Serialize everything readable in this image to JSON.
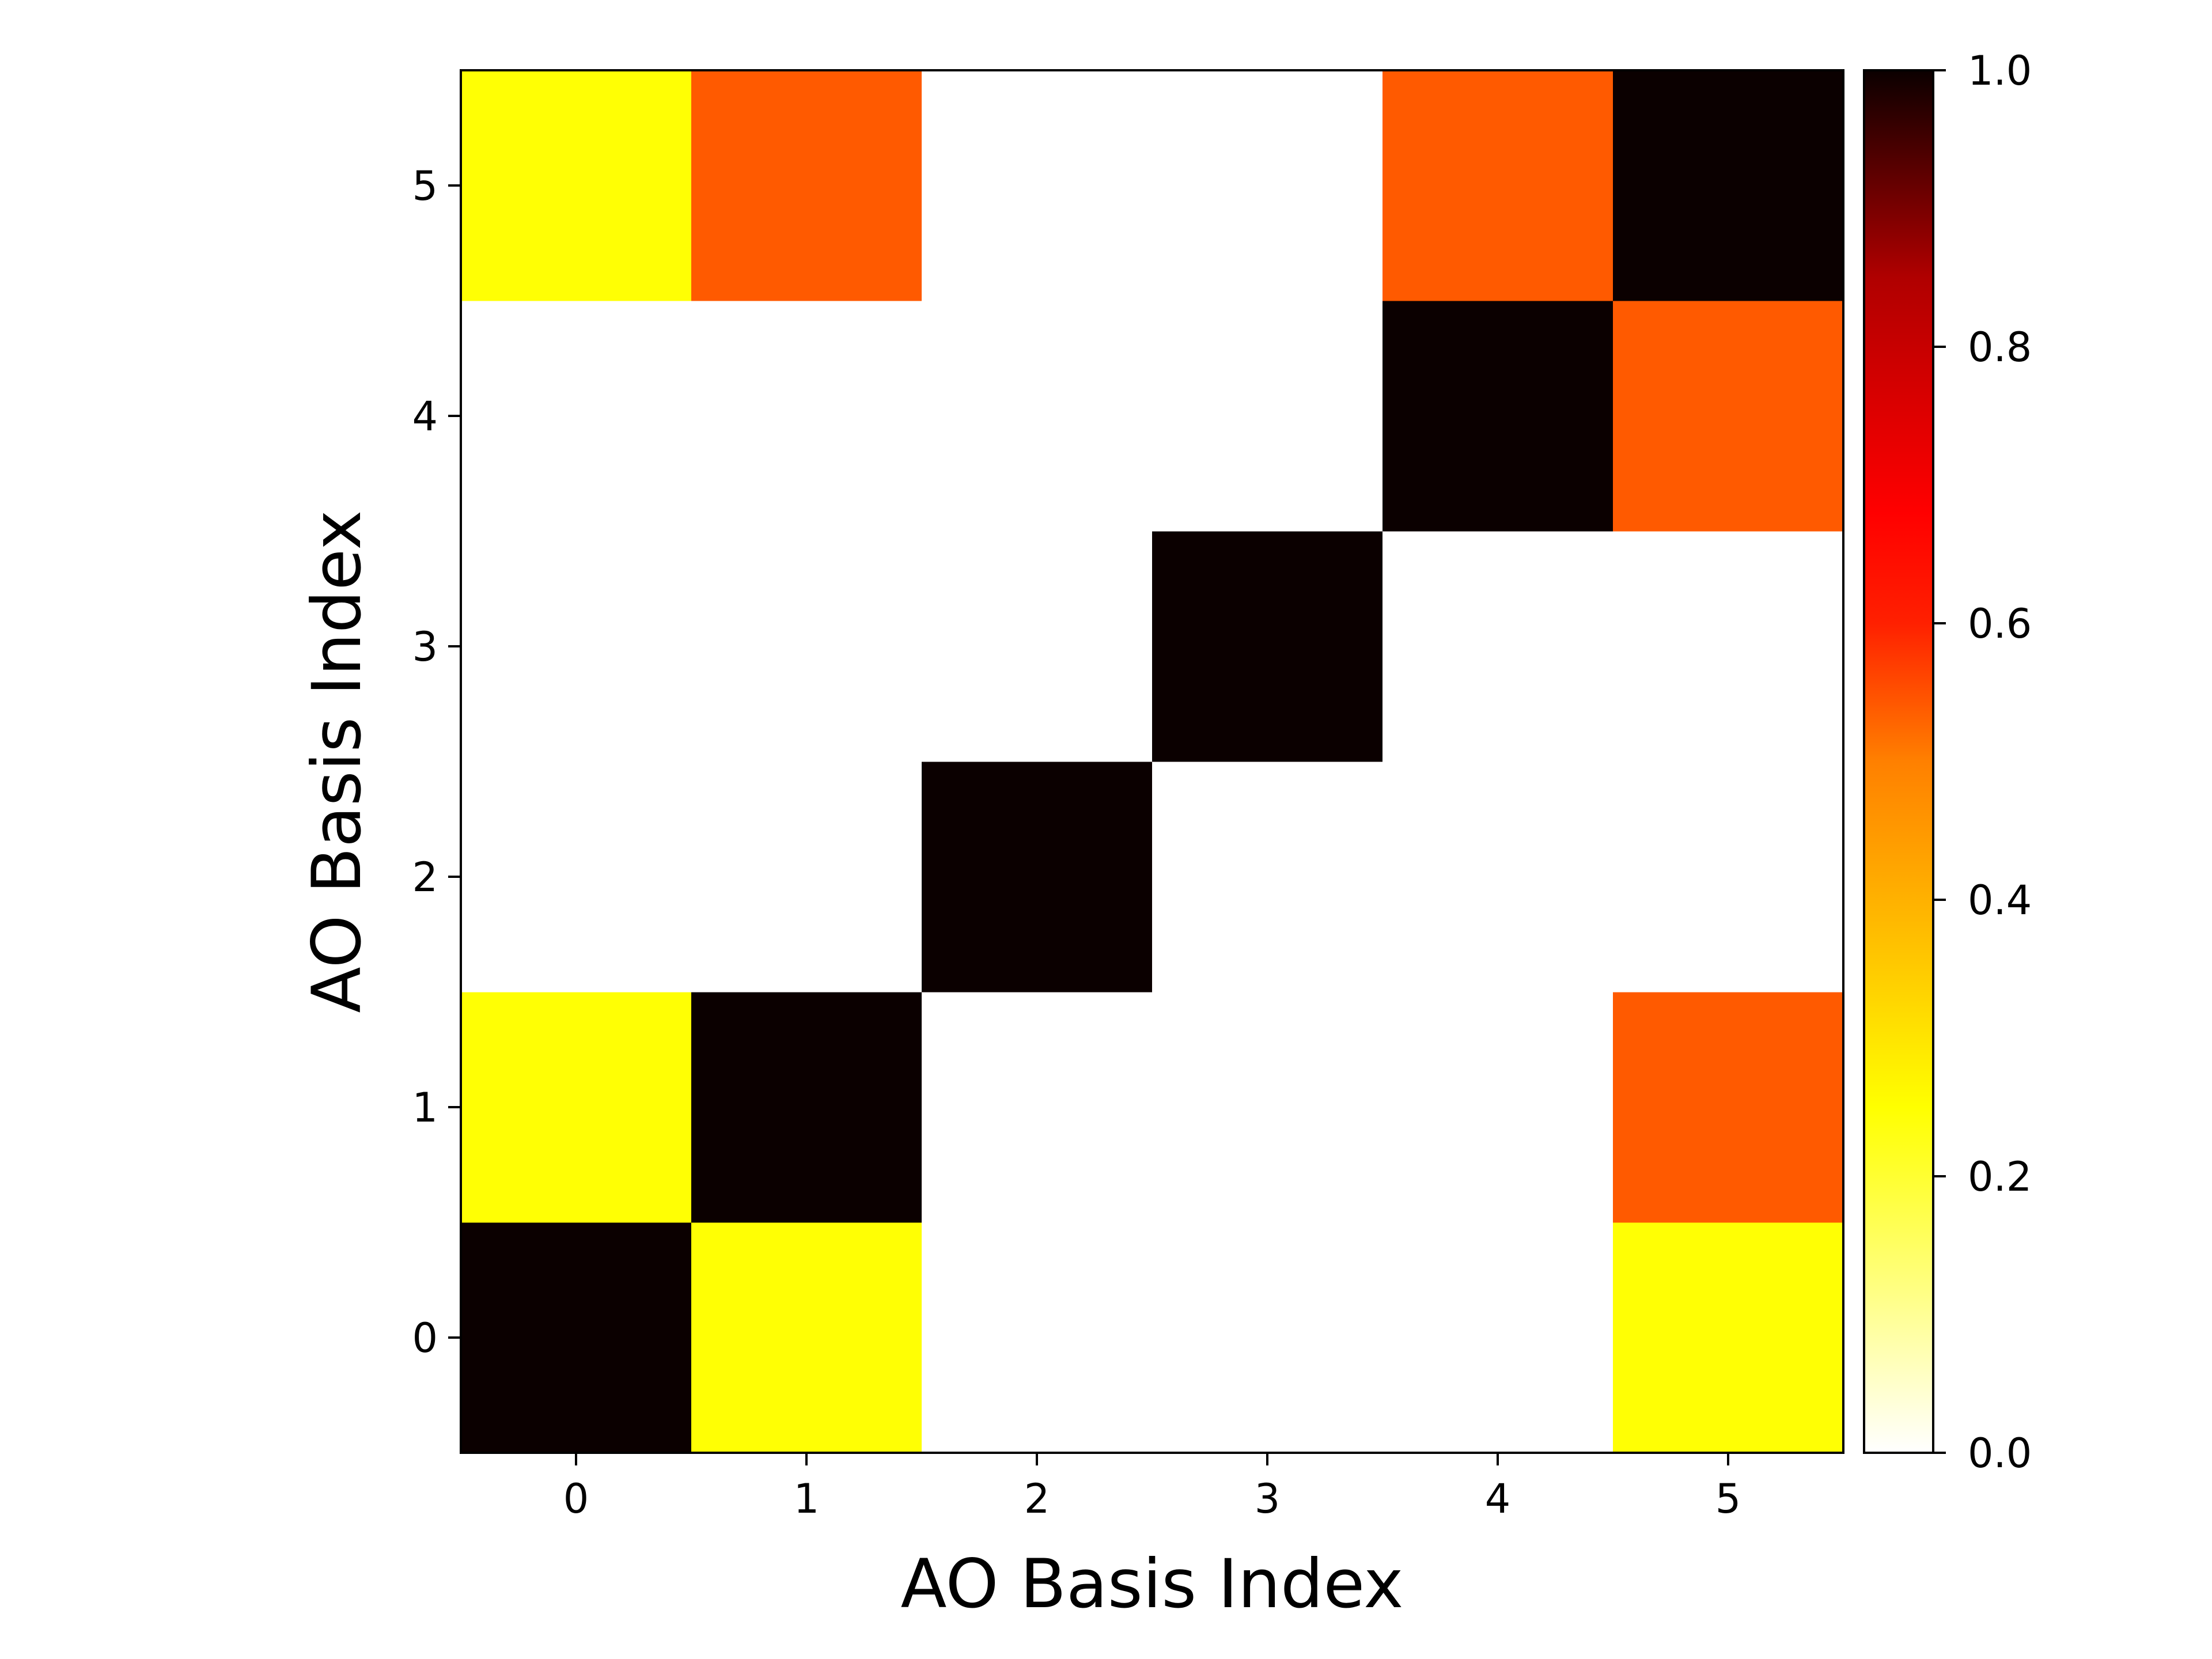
{
  "chart_data": {
    "type": "heatmap",
    "title": "",
    "xlabel": "AO Basis Index",
    "ylabel": "AO Basis Index",
    "x_categories": [
      "0",
      "1",
      "2",
      "3",
      "4",
      "5"
    ],
    "y_categories": [
      "0",
      "1",
      "2",
      "3",
      "4",
      "5"
    ],
    "values": [
      [
        1.0,
        0.25,
        0.0,
        0.0,
        0.0,
        0.25
      ],
      [
        0.25,
        1.0,
        0.0,
        0.0,
        0.0,
        0.5
      ],
      [
        0.0,
        0.0,
        1.0,
        0.0,
        0.0,
        0.0
      ],
      [
        0.0,
        0.0,
        0.0,
        1.0,
        0.0,
        0.0
      ],
      [
        0.0,
        0.0,
        0.0,
        0.0,
        1.0,
        0.5
      ],
      [
        0.25,
        0.5,
        0.0,
        0.0,
        0.5,
        1.0
      ]
    ],
    "colormap": "hot_r",
    "vmin": 0.0,
    "vmax": 1.0,
    "colorbar": {
      "ticks": [
        0.0,
        0.2,
        0.4,
        0.6,
        0.8,
        1.0
      ],
      "tick_labels": [
        "0.0",
        "0.2",
        "0.4",
        "0.6",
        "0.8",
        "1.0"
      ]
    }
  }
}
